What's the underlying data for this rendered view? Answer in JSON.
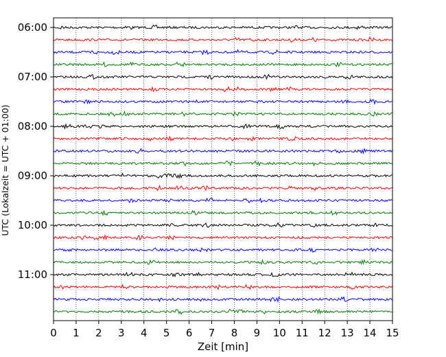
{
  "chart_data": {
    "type": "line",
    "title": "",
    "xlabel": "Zeit  [min]",
    "ylabel": "UTC (Lokalzeit = UTC + 01:00)",
    "xlim": [
      0,
      15
    ],
    "x_ticks": [
      "0",
      "1",
      "2",
      "3",
      "4",
      "5",
      "6",
      "7",
      "8",
      "9",
      "10",
      "11",
      "12",
      "13",
      "14",
      "15"
    ],
    "y_ticks": [
      "06:00",
      "07:00",
      "08:00",
      "09:00",
      "10:00",
      "11:00"
    ],
    "grid": "vertical dotted",
    "trace_interval_min": 15,
    "first_trace": "06:00",
    "last_trace": "11:45",
    "trace_colors": [
      "#000000",
      "#ff0000",
      "#0000ff",
      "#008000"
    ],
    "trace_count": 24
  }
}
